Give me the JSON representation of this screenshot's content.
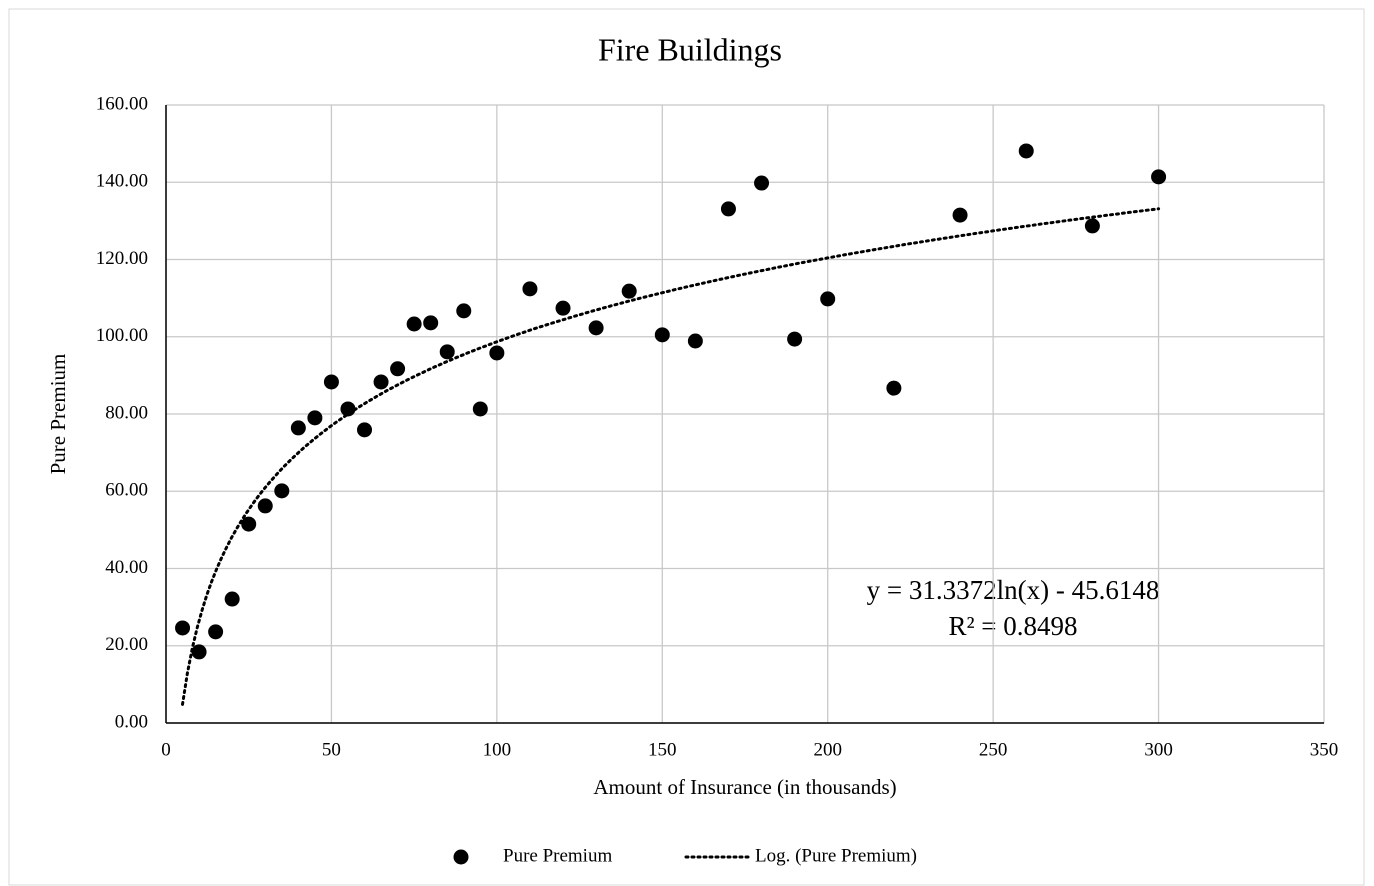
{
  "chart_data": {
    "type": "scatter",
    "title": "Fire Buildings",
    "xlabel": "Amount of Insurance (in thousands)",
    "ylabel": "Pure Premium",
    "series": [
      {
        "name": "Pure Premium",
        "color": "#000000",
        "x": [
          5,
          10,
          15,
          20,
          25,
          30,
          35,
          40,
          45,
          50,
          55,
          60,
          65,
          70,
          75,
          80,
          85,
          90,
          95,
          100,
          110,
          120,
          130,
          140,
          150,
          160,
          170,
          180,
          190,
          200,
          220,
          240,
          260,
          280,
          300
        ],
        "values": [
          24.6,
          18.4,
          23.6,
          32.1,
          51.5,
          56.2,
          60.1,
          76.4,
          79.0,
          88.3,
          81.3,
          75.9,
          88.3,
          91.7,
          103.3,
          103.6,
          96.1,
          106.7,
          81.3,
          95.8,
          112.4,
          107.4,
          102.3,
          111.8,
          100.5,
          98.9,
          133.1,
          139.8,
          99.4,
          109.8,
          86.7,
          131.5,
          148.1,
          128.7,
          141.4
        ]
      }
    ],
    "trendline": {
      "name": "Log. (Pure Premium)",
      "color": "#000000",
      "a": 31.3372,
      "b": -45.6148
    },
    "annotations": [
      "y = 31.3372ln(x) - 45.6148",
      "R² = 0.8498"
    ],
    "xlim": [
      0,
      350
    ],
    "xticks": [
      0,
      50,
      100,
      150,
      200,
      250,
      300,
      350
    ],
    "ylim": [
      0,
      160
    ],
    "yticks": [
      {
        "value": 0,
        "label": "0.00"
      },
      {
        "value": 20,
        "label": "20.00"
      },
      {
        "value": 40,
        "label": "40.00"
      },
      {
        "value": 60,
        "label": "60.00"
      },
      {
        "value": 80,
        "label": "80.00"
      },
      {
        "value": 100,
        "label": "100.00"
      },
      {
        "value": 120,
        "label": "120.00"
      },
      {
        "value": 140,
        "label": "140.00"
      },
      {
        "value": 160,
        "label": "160.00"
      }
    ],
    "grid": true,
    "legend": "bottom"
  }
}
